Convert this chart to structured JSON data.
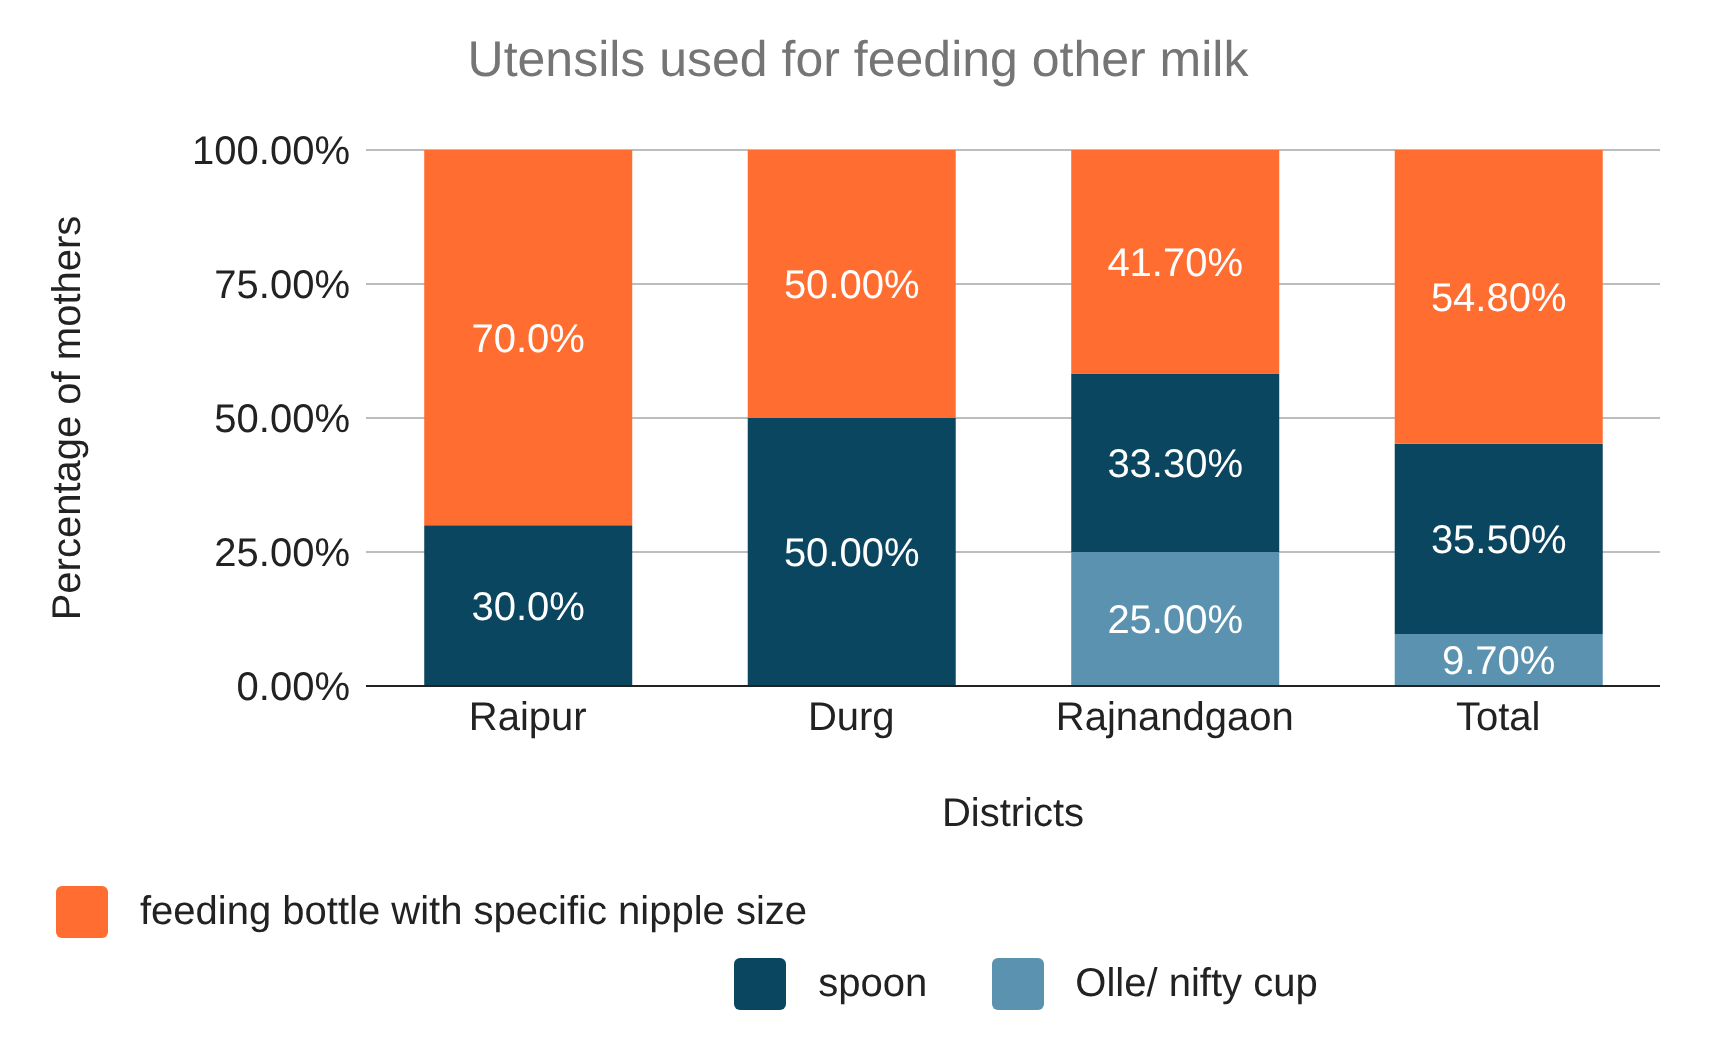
{
  "chart_data": {
    "type": "bar",
    "title": "Utensils used for feeding other milk",
    "xlabel": "Districts",
    "ylabel": "Percentage of mothers",
    "categories": [
      "Raipur",
      "Durg",
      "Rajnandgaon",
      "Total"
    ],
    "stacked": true,
    "series": [
      {
        "name": "Olle/ nifty cup",
        "color": "#5a92b0",
        "values": [
          null,
          null,
          25,
          9.7
        ],
        "value_labels": [
          null,
          null,
          "25.00%",
          "9.70%"
        ]
      },
      {
        "name": "spoon",
        "color": "#0b4660",
        "values": [
          30,
          50,
          33.3,
          35.5
        ],
        "value_labels": [
          "30.0%",
          "50.00%",
          "33.30%",
          "35.50%"
        ]
      },
      {
        "name": "feeding bottle with specific nipple size",
        "color": "#ff6d31",
        "values": [
          70,
          50,
          41.7,
          54.8
        ],
        "value_labels": [
          "70.0%",
          "50.00%",
          "41.70%",
          "54.80%"
        ]
      }
    ],
    "ylim": [
      0,
      100
    ],
    "yticks": [
      {
        "value": 0,
        "label": "0.00%"
      },
      {
        "value": 25,
        "label": "25.00%"
      },
      {
        "value": 50,
        "label": "50.00%"
      },
      {
        "value": 75,
        "label": "75.00%"
      },
      {
        "value": 100,
        "label": "100.00%"
      }
    ],
    "grid": "y",
    "legend": "bottom"
  }
}
